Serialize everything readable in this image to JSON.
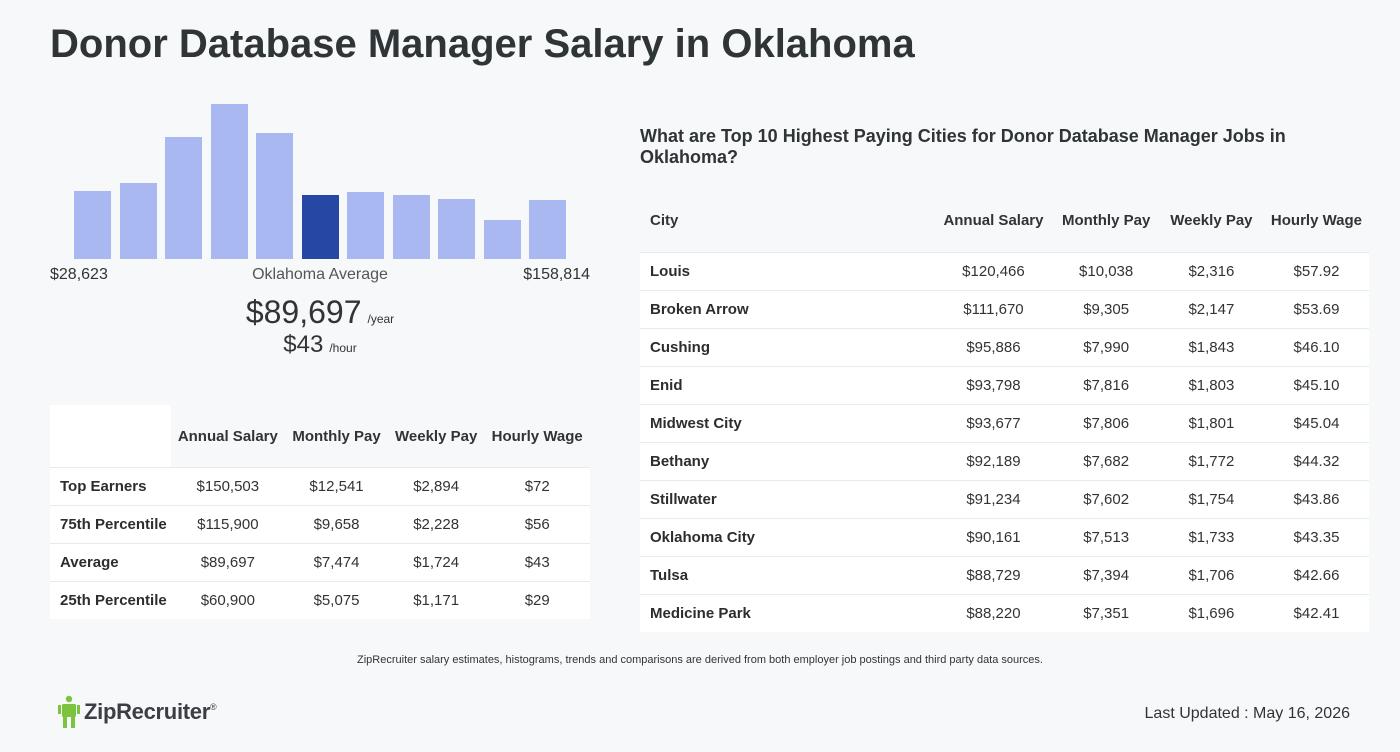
{
  "page": {
    "title": "Donor Database Manager Salary in Oklahoma"
  },
  "histogram": {
    "min_label": "$28,623",
    "max_label": "$158,814",
    "center_label": "Oklahoma Average",
    "bar_levels": [
      0.44,
      0.49,
      0.79,
      1.0,
      0.81,
      0.41,
      0.43,
      0.41,
      0.39,
      0.25,
      0.38
    ],
    "active_index": 5,
    "bar_color": "#a9b8f0",
    "active_color": "#2747a4"
  },
  "average": {
    "annual": "$89,697",
    "annual_unit": "/year",
    "hourly": "$43",
    "hourly_unit": "/hour"
  },
  "percentile_table": {
    "headers": [
      "",
      "Annual Salary",
      "Monthly Pay",
      "Weekly Pay",
      "Hourly Wage"
    ],
    "rows": [
      {
        "label": "Top Earners",
        "values": [
          "$150,503",
          "$12,541",
          "$2,894",
          "$72"
        ]
      },
      {
        "label": "75th Percentile",
        "values": [
          "$115,900",
          "$9,658",
          "$2,228",
          "$56"
        ]
      },
      {
        "label": "Average",
        "values": [
          "$89,697",
          "$7,474",
          "$1,724",
          "$43"
        ]
      },
      {
        "label": "25th Percentile",
        "values": [
          "$60,900",
          "$5,075",
          "$1,171",
          "$29"
        ]
      }
    ]
  },
  "city_section": {
    "heading": "What are Top 10 Highest Paying Cities for Donor Database Manager Jobs in Oklahoma?",
    "headers": [
      "City",
      "Annual Salary",
      "Monthly Pay",
      "Weekly Pay",
      "Hourly Wage"
    ],
    "rows": [
      {
        "city": "Louis",
        "values": [
          "$120,466",
          "$10,038",
          "$2,316",
          "$57.92"
        ]
      },
      {
        "city": "Broken Arrow",
        "values": [
          "$111,670",
          "$9,305",
          "$2,147",
          "$53.69"
        ]
      },
      {
        "city": "Cushing",
        "values": [
          "$95,886",
          "$7,990",
          "$1,843",
          "$46.10"
        ]
      },
      {
        "city": "Enid",
        "values": [
          "$93,798",
          "$7,816",
          "$1,803",
          "$45.10"
        ]
      },
      {
        "city": "Midwest City",
        "values": [
          "$93,677",
          "$7,806",
          "$1,801",
          "$45.04"
        ]
      },
      {
        "city": "Bethany",
        "values": [
          "$92,189",
          "$7,682",
          "$1,772",
          "$44.32"
        ]
      },
      {
        "city": "Stillwater",
        "values": [
          "$91,234",
          "$7,602",
          "$1,754",
          "$43.86"
        ]
      },
      {
        "city": "Oklahoma City",
        "values": [
          "$90,161",
          "$7,513",
          "$1,733",
          "$43.35"
        ]
      },
      {
        "city": "Tulsa",
        "values": [
          "$88,729",
          "$7,394",
          "$1,706",
          "$42.66"
        ]
      },
      {
        "city": "Medicine Park",
        "values": [
          "$88,220",
          "$7,351",
          "$1,696",
          "$42.41"
        ]
      }
    ]
  },
  "footer": {
    "note": "ZipRecruiter salary estimates, histograms, trends and comparisons are derived from both employer job postings and third party data sources.",
    "logo_text": "ZipRecruiter",
    "logo_mark": "®",
    "logo_icon": "ziprecruiter-figure-icon",
    "logo_color": "#7cc43f",
    "last_updated": "Last Updated : May 16, 2026"
  }
}
